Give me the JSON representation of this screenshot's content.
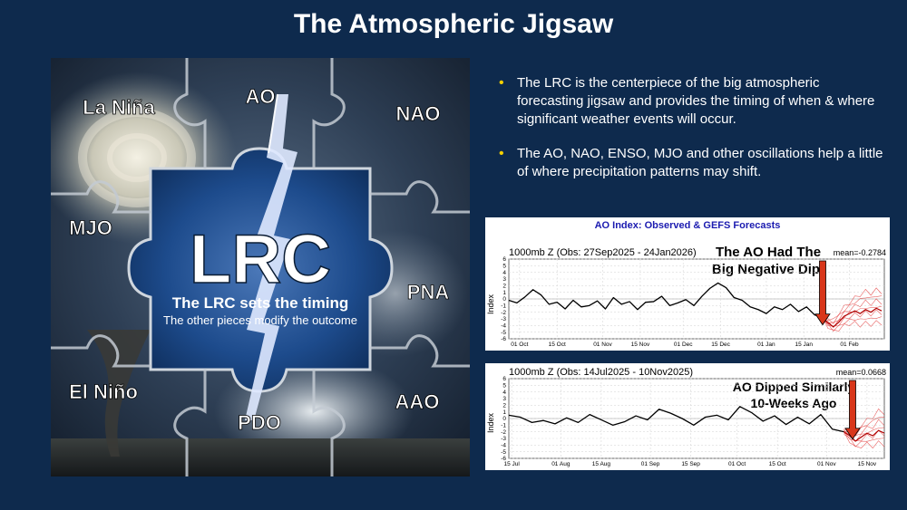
{
  "slide": {
    "title": "The Atmospheric Jigsaw"
  },
  "puzzle": {
    "center_label": "LRC",
    "tagline": "The LRC sets the timing",
    "subtagline": "The other pieces modify the outcome",
    "pieces": [
      "La Niña",
      "AO",
      "NAO",
      "MJO",
      "PNA",
      "El Niño",
      "PDO",
      "AAO"
    ]
  },
  "bullets": [
    "The LRC is the centerpiece of the big atmospheric forecasting jigsaw and provides the timing of when & where significant weather events will occur.",
    "The AO, NAO, ENSO, MJO and other oscillations help a little of where precipitation patterns may shift."
  ],
  "colors": {
    "background": "#0e2a4d",
    "bullet": "#f5d000",
    "chart_title": "#1b1bb0",
    "arrow": "#d8361a",
    "forecast": "#e02020",
    "line": "#000000"
  },
  "chart_data": [
    {
      "type": "line",
      "title": "AO Index: Observed & GEFS Forecasts",
      "subtitle": "1000mb Z (Obs: 27Sep2025 - 24Jan2026)",
      "mean_label": "mean=-0.2784",
      "annotation": [
        "The AO Had The",
        "Big Negative Dip!"
      ],
      "ylabel": "Index",
      "ylim": [
        -6,
        6
      ],
      "yticks": [
        6,
        5,
        4,
        3,
        2,
        1,
        0,
        -1,
        -2,
        -3,
        -4,
        -5,
        -6
      ],
      "xlim": [
        0,
        140
      ],
      "xticks": [
        {
          "x": 4,
          "label": "01 Oct"
        },
        {
          "x": 18,
          "label": "15 Oct"
        },
        {
          "x": 35,
          "label": "01 Nov"
        },
        {
          "x": 49,
          "label": "15 Nov"
        },
        {
          "x": 65,
          "label": "01 Dec"
        },
        {
          "x": 79,
          "label": "15 Dec"
        },
        {
          "x": 96,
          "label": "01 Jan"
        },
        {
          "x": 110,
          "label": "15 Jan"
        },
        {
          "x": 127,
          "label": "01 Feb"
        }
      ],
      "observed": {
        "x": [
          0,
          3,
          6,
          9,
          12,
          15,
          18,
          21,
          24,
          27,
          30,
          33,
          36,
          39,
          42,
          45,
          48,
          51,
          54,
          57,
          60,
          63,
          66,
          69,
          72,
          75,
          78,
          81,
          84,
          87,
          90,
          93,
          96,
          99,
          102,
          105,
          108,
          111,
          114,
          117
        ],
        "y": [
          -0.2,
          -0.6,
          0.3,
          1.4,
          0.6,
          -0.8,
          -0.5,
          -1.5,
          -0.2,
          -1.2,
          -1.0,
          -0.3,
          -1.5,
          0.2,
          -0.8,
          -0.4,
          -1.6,
          -0.5,
          -0.4,
          0.4,
          -1.0,
          -0.6,
          -0.1,
          -1.0,
          0.4,
          1.6,
          2.4,
          1.7,
          0.2,
          -0.2,
          -1.2,
          -1.6,
          -2.2,
          -1.2,
          -1.6,
          -0.8,
          -1.9,
          -1.2,
          -2.4,
          -2.8
        ]
      },
      "forecast": {
        "x": [
          117,
          119,
          121,
          123,
          125,
          127,
          129,
          131,
          133,
          135,
          137,
          139
        ],
        "mean": [
          -2.8,
          -3.6,
          -4.2,
          -3.5,
          -2.6,
          -2.2,
          -1.8,
          -2.2,
          -1.6,
          -2.0,
          -1.4,
          -1.8
        ],
        "upper": [
          -2.6,
          -3.0,
          -3.2,
          -2.2,
          -1.2,
          -0.6,
          0.2,
          0.6,
          1.2,
          0.8,
          1.4,
          1.0
        ],
        "lower": [
          -3.0,
          -4.2,
          -4.9,
          -4.6,
          -4.0,
          -3.8,
          -3.6,
          -4.0,
          -3.6,
          -3.9,
          -3.5,
          -3.7
        ]
      },
      "arrow_x": 117
    },
    {
      "type": "line",
      "subtitle": "1000mb Z (Obs: 14Jul2025 - 10Nov2025)",
      "mean_label": "mean=0.0668",
      "annotation": [
        "AO Dipped Similarly",
        "10-Weeks Ago"
      ],
      "ylabel": "Index",
      "ylim": [
        -6,
        6
      ],
      "yticks": [
        6,
        5,
        4,
        3,
        2,
        1,
        0,
        -1,
        -2,
        -3,
        -4,
        -5,
        -6
      ],
      "xlim": [
        0,
        130
      ],
      "xticks": [
        {
          "x": 1,
          "label": "15 Jul"
        },
        {
          "x": 18,
          "label": "01 Aug"
        },
        {
          "x": 32,
          "label": "15 Aug"
        },
        {
          "x": 49,
          "label": "01 Sep"
        },
        {
          "x": 63,
          "label": "15 Sep"
        },
        {
          "x": 79,
          "label": "01 Oct"
        },
        {
          "x": 93,
          "label": "15 Oct"
        },
        {
          "x": 110,
          "label": "01 Nov"
        },
        {
          "x": 124,
          "label": "15 Nov"
        }
      ],
      "observed": {
        "x": [
          0,
          4,
          8,
          12,
          16,
          20,
          24,
          28,
          32,
          36,
          40,
          44,
          48,
          52,
          56,
          60,
          64,
          68,
          72,
          76,
          80,
          84,
          88,
          92,
          96,
          100,
          104,
          108,
          112,
          116
        ],
        "y": [
          0.5,
          0.2,
          -0.6,
          -0.3,
          -0.8,
          0.1,
          -0.6,
          0.6,
          -0.2,
          -1.0,
          -0.5,
          0.4,
          -0.2,
          1.4,
          0.8,
          0.0,
          -1.0,
          0.2,
          0.5,
          -0.2,
          1.8,
          0.9,
          -0.4,
          0.4,
          -0.9,
          0.2,
          -0.8,
          0.6,
          -1.6,
          -2.0
        ]
      },
      "forecast": {
        "x": [
          116,
          118,
          120,
          122,
          124,
          126,
          128,
          130
        ],
        "mean": [
          -2.0,
          -2.6,
          -3.4,
          -2.8,
          -2.2,
          -2.6,
          -1.8,
          -2.2
        ],
        "upper": [
          -1.8,
          -1.8,
          -2.0,
          -1.0,
          -0.2,
          0.2,
          1.2,
          0.8
        ],
        "lower": [
          -2.2,
          -3.4,
          -4.4,
          -4.2,
          -3.8,
          -4.2,
          -3.6,
          -4.0
        ]
      },
      "arrow_x": 119
    }
  ]
}
